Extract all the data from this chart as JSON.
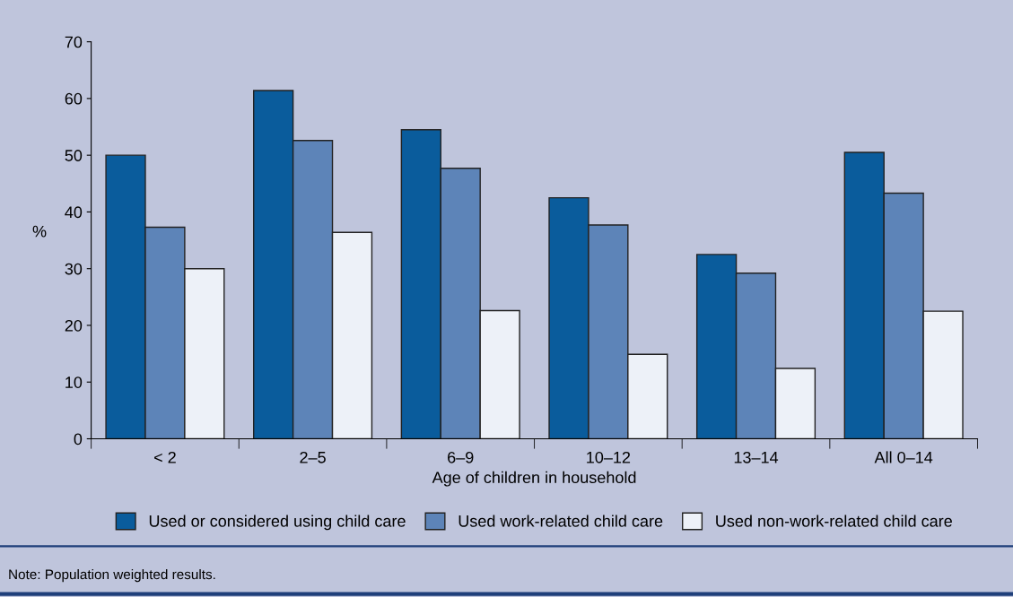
{
  "chart_data": {
    "type": "bar",
    "categories": [
      "< 2",
      "2–5",
      "6–9",
      "10–12",
      "13–14",
      "All 0–14"
    ],
    "xlabel": "Age of children in household",
    "ylabel": "%",
    "series": [
      {
        "name": "Used or considered using child care",
        "color": "#0a5c9c",
        "values": [
          50.0,
          61.4,
          54.5,
          42.5,
          32.5,
          50.5
        ]
      },
      {
        "name": "Used work-related child care",
        "color": "#5d84b8",
        "values": [
          37.3,
          52.6,
          47.7,
          37.7,
          29.2,
          43.3
        ]
      },
      {
        "name": "Used non-work-related child care",
        "color": "#edf1f8",
        "values": [
          30.0,
          36.4,
          22.6,
          14.9,
          12.4,
          22.5
        ]
      }
    ],
    "ylim": [
      0,
      70
    ],
    "yticks": [
      0,
      10,
      20,
      30,
      40,
      50,
      60,
      70
    ],
    "legend": "bottom",
    "grid": false,
    "annotations": [
      "Note: Population weighted results."
    ]
  }
}
